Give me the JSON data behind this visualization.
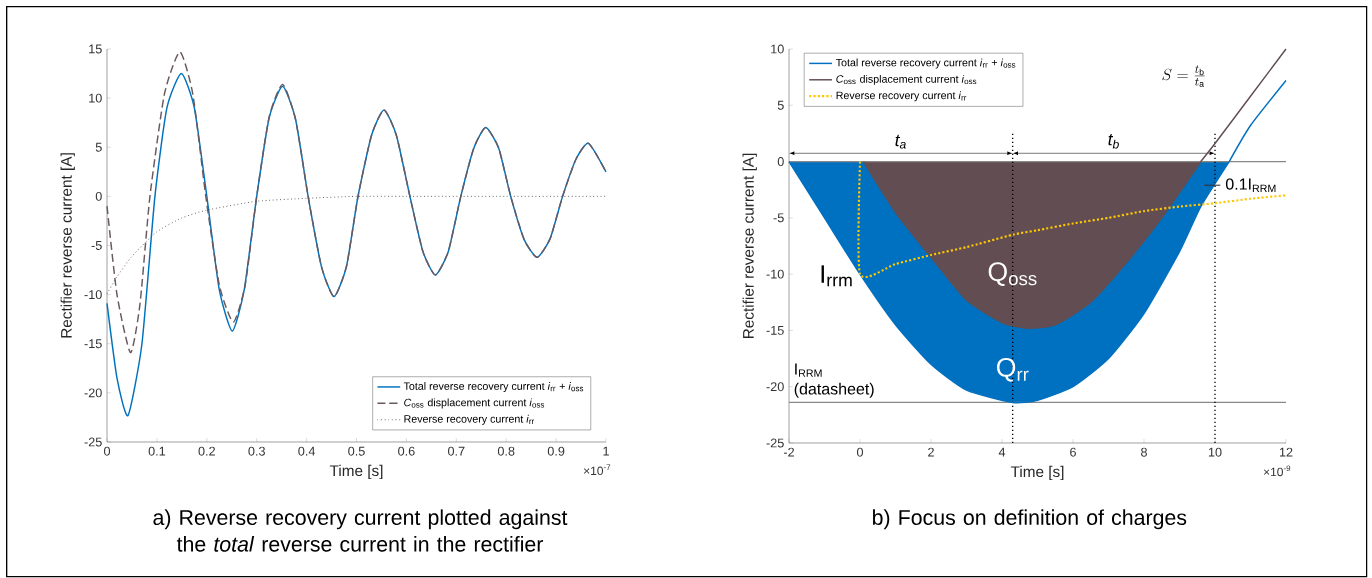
{
  "chart_data": [
    {
      "type": "line",
      "title": "a) Reverse recovery current plotted against the *total* reverse current in the rectifier",
      "xlabel": "Time [s]",
      "ylabel": "Rectifier reverse current [A]",
      "xlim": [
        0,
        1
      ],
      "xticks": [
        0,
        0.1,
        0.2,
        0.3,
        0.4,
        0.5,
        0.6,
        0.7,
        0.8,
        0.9,
        1
      ],
      "ylim": [
        -25,
        15
      ],
      "yticks": [
        -25,
        -20,
        -15,
        -10,
        -5,
        0,
        5,
        10,
        15
      ],
      "legend": "bottom right",
      "grid": false,
      "annotations": [
        "×10$^{-7}$"
      ],
      "series": [
        {
          "name": "Total reverse recovery current  *i*$_{rr}$ + *i*$_{oss}$",
          "color": "#0072bd",
          "line_style": "solid",
          "x": [
            0,
            0.02,
            0.042,
            0.07,
            0.096,
            0.12,
            0.149,
            0.175,
            0.2,
            0.225,
            0.251,
            0.275,
            0.3,
            0.325,
            0.352,
            0.378,
            0.403,
            0.43,
            0.455,
            0.48,
            0.503,
            0.53,
            0.555,
            0.58,
            0.607,
            0.633,
            0.658,
            0.684,
            0.709,
            0.735,
            0.759,
            0.785,
            0.809,
            0.836,
            0.862,
            0.888,
            0.913,
            0.94,
            0.965,
            1.0
          ],
          "values": [
            -10.9,
            -18.5,
            -22.3,
            -15,
            0,
            9,
            12.5,
            9,
            0,
            -9.5,
            -13.7,
            -9.5,
            0,
            8,
            11.2,
            7.8,
            0,
            -7.2,
            -10.2,
            -7.1,
            0,
            6.2,
            8.8,
            6.2,
            0,
            -5.6,
            -8.0,
            -5.6,
            0,
            4.9,
            7.0,
            4.9,
            0,
            -4.4,
            -6.2,
            -4.3,
            0,
            3.8,
            5.4,
            2.5
          ]
        },
        {
          "name": "*C*$_{oss}$ displacement current  *i*$_{oss}$",
          "color": "#6a5a60",
          "line_style": "dashed",
          "x": [
            0,
            0.02,
            0.047,
            0.066,
            0.086,
            0.115,
            0.146,
            0.172,
            0.198,
            0.225,
            0.253,
            0.277,
            0.3,
            0.325,
            0.352,
            0.378,
            0.403,
            0.43,
            0.455,
            0.48,
            0.503,
            0.53,
            0.555,
            0.58,
            0.607,
            0.633,
            0.658,
            0.684,
            0.709,
            0.735,
            0.759,
            0.785,
            0.809,
            0.836,
            0.862,
            0.888,
            0.913,
            0.94,
            0.965,
            1.0
          ],
          "values": [
            -1,
            -10,
            -15.9,
            -11,
            0,
            10.4,
            14.7,
            10.4,
            0,
            -9,
            -12.8,
            -9,
            0,
            8.1,
            11.4,
            7.8,
            0,
            -7.2,
            -10.2,
            -7.1,
            0,
            6.2,
            8.8,
            6.2,
            0,
            -5.6,
            -8.0,
            -5.6,
            0,
            4.9,
            7.0,
            4.9,
            0,
            -4.4,
            -6.2,
            -4.3,
            0,
            3.8,
            5.4,
            2.5
          ]
        },
        {
          "name": "Reverse recovery current  *i*$_{rr}$",
          "color": "#555555",
          "line_style": "dotted",
          "x": [
            0,
            0.02,
            0.05,
            0.1,
            0.15,
            0.2,
            0.3,
            0.4,
            0.5,
            0.6,
            0.8,
            1.0
          ],
          "values": [
            -9.9,
            -8.2,
            -6.1,
            -3.6,
            -2.2,
            -1.4,
            -0.5,
            -0.2,
            0,
            0,
            0,
            0
          ]
        }
      ]
    },
    {
      "type": "area",
      "title": "b) Focus on definition of charges",
      "xlabel": "Time [s]",
      "ylabel": "Rectifier reverse current [A]",
      "xlim": [
        -2,
        12
      ],
      "xticks": [
        -2,
        0,
        2,
        4,
        6,
        8,
        10,
        12
      ],
      "ylim": [
        -25,
        10
      ],
      "yticks": [
        -25,
        -20,
        -15,
        -10,
        -5,
        0,
        5,
        10
      ],
      "legend": "top left",
      "grid": false,
      "annotations": [
        "×10$^{-9}$",
        "S = \\frac{t_\\mathrm{b}}{t_\\mathrm{a}}",
        "t$_{a}$",
        "t$_{b}$",
        {
          "text": "I$_{rrm}$",
          "x": 0,
          "y": -10
        },
        {
          "text": "Q$_{oss}$",
          "x": 4.3,
          "y": -10
        },
        {
          "text": "Q$_{rr}$",
          "x": 4.3,
          "y": -18.5
        },
        {
          "text": "0.1I$_{RRM}$",
          "x": 10,
          "y": -2.1
        }
      ],
      "ref_lines": [
        {
          "axis": "y",
          "value": 0,
          "color": "#888888",
          "line_style": "solid"
        },
        {
          "axis": "y",
          "value": -21.4,
          "label": "I$_{RRM}$ (datasheet)",
          "color": "#888888",
          "line_style": "solid"
        },
        {
          "axis": "x",
          "value": 4.3,
          "color": "#000000",
          "line_style": "dotted"
        },
        {
          "axis": "x",
          "value": 10,
          "color": "#000000",
          "line_style": "dotted"
        }
      ],
      "series": [
        {
          "name": "Total reverse recovery current  *i*$_{rr}$ + *i*$_{oss}$",
          "color": "#0070c0",
          "line_style": "solid",
          "x": [
            -2,
            -1,
            0,
            1,
            2,
            3,
            4.3,
            5,
            6,
            7,
            8,
            9,
            9.6,
            10.4
          ],
          "values": [
            0,
            -5,
            -10,
            -14.5,
            -18,
            -20.3,
            -21.4,
            -21.2,
            -20,
            -17.5,
            -13.5,
            -8,
            -4,
            0
          ]
        },
        {
          "name": "*C*$_{oss}$ displacement current  *i*$_{oss}$",
          "color": "#624e52",
          "line_style": "solid",
          "x": [
            0.1,
            1,
            2,
            3,
            4,
            4.7,
            5.5,
            6.5,
            7.5,
            8.5,
            9.6
          ],
          "values": [
            0,
            -4.5,
            -8.5,
            -12.3,
            -14.3,
            -14.8,
            -14.5,
            -12.5,
            -9,
            -5,
            0
          ]
        },
        {
          "name": "Reverse recovery current  *i*$_{rr}$",
          "type": "line",
          "color": "#ffc800",
          "line_style": "dotted",
          "x": [
            0,
            0,
            1,
            2,
            3,
            4.3,
            5,
            6,
            7,
            8,
            9,
            10,
            11,
            12
          ],
          "values": [
            0,
            -10,
            -9.1,
            -8.3,
            -7.6,
            -6.5,
            -6.1,
            -5.5,
            -5,
            -4.4,
            -4.0,
            -3.7,
            -3.3,
            -3.0
          ]
        },
        {
          "type": "line",
          "color": "#0070c0",
          "line_style": "solid",
          "x": [
            10.4,
            11,
            12
          ],
          "values": [
            0,
            3.2,
            7.2
          ]
        },
        {
          "type": "line",
          "color": "#624e52",
          "line_style": "solid",
          "x": [
            9.6,
            10,
            11,
            12
          ],
          "values": [
            0,
            1.6,
            5.8,
            10
          ]
        }
      ]
    }
  ]
}
